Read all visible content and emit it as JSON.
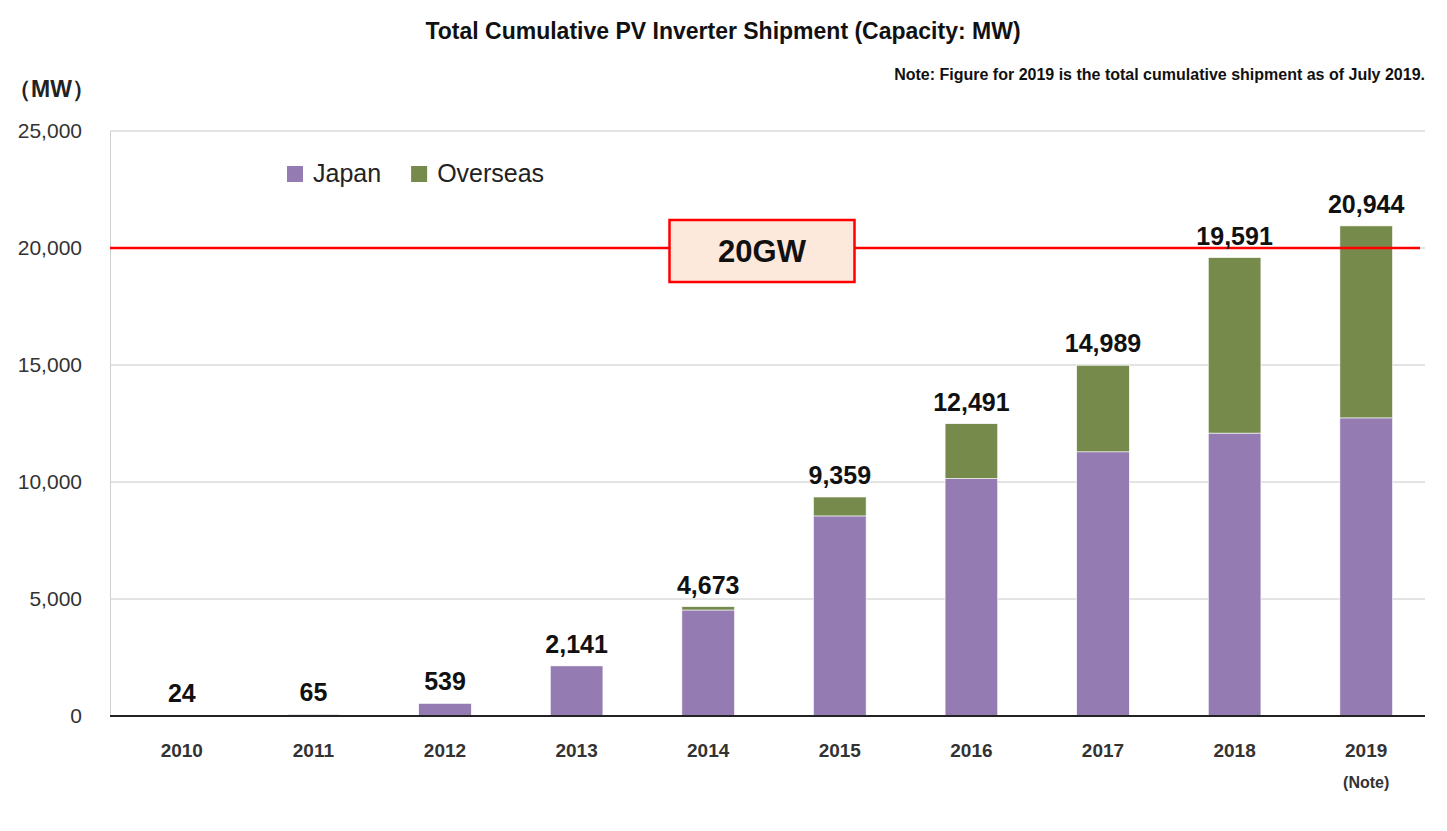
{
  "chart_data": {
    "type": "bar",
    "stacked": true,
    "title": "Total Cumulative PV Inverter Shipment (Capacity: MW)",
    "subtitle": "Note: Figure for 2019 is the total cumulative shipment as of July 2019.",
    "y_label": "（MW）",
    "categories": [
      "2010",
      "2011",
      "2012",
      "2013",
      "2014",
      "2015",
      "2016",
      "2017",
      "2018",
      "2019"
    ],
    "category_note": {
      "category": "2019",
      "text": "(Note)"
    },
    "series": [
      {
        "name": "Japan",
        "color": "#947cb2",
        "values": [
          24,
          65,
          539,
          2141,
          4530,
          8550,
          10150,
          11290,
          12090,
          12740
        ]
      },
      {
        "name": "Overseas",
        "color": "#768a4c",
        "values": [
          0,
          0,
          0,
          0,
          143,
          809,
          2341,
          3699,
          7501,
          8204
        ]
      }
    ],
    "totals": [
      24,
      65,
      539,
      2141,
      4673,
      9359,
      12491,
      14989,
      19591,
      20944
    ],
    "total_labels": [
      "24",
      "65",
      "539",
      "2,141",
      "4,673",
      "9,359",
      "12,491",
      "14,989",
      "19,591",
      "20,944"
    ],
    "data_labels": true,
    "reference_line": {
      "value": 20000,
      "label": "20GW",
      "color": "#ff0000"
    },
    "ylim": [
      0,
      25000
    ],
    "yticks": [
      0,
      {
        "value": 5000,
        "label": "5,000"
      },
      {
        "value": 10000,
        "label": "10,000"
      },
      {
        "value": 15000,
        "label": "15,000"
      },
      {
        "value": 20000,
        "label": "20,000"
      },
      {
        "value": 25000,
        "label": "25,000"
      }
    ],
    "grid": true,
    "legend": "top-left"
  }
}
